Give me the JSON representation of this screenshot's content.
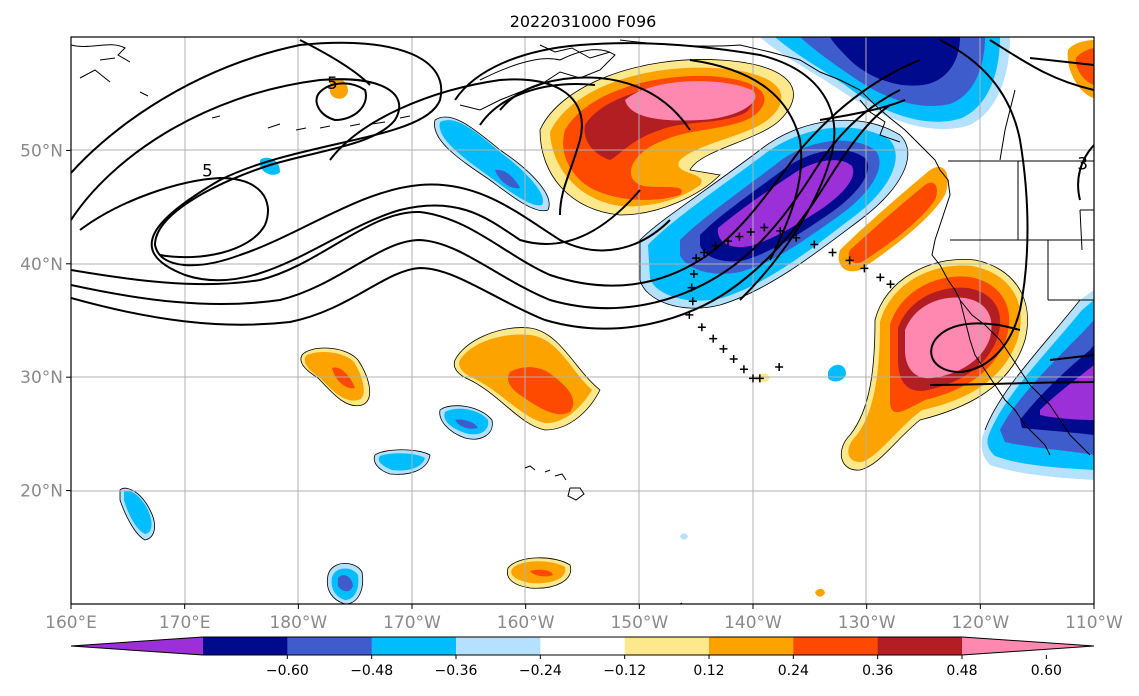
{
  "title": "2022031000 F096",
  "map": {
    "lon_range": [
      160,
      250
    ],
    "lat_range": [
      10,
      60
    ],
    "lon_ticks": [
      {
        "lon": 160,
        "label": "160°E"
      },
      {
        "lon": 170,
        "label": "170°E"
      },
      {
        "lon": 180,
        "label": "180°W"
      },
      {
        "lon": 190,
        "label": "170°W"
      },
      {
        "lon": 200,
        "label": "160°W"
      },
      {
        "lon": 210,
        "label": "150°W"
      },
      {
        "lon": 220,
        "label": "140°W"
      },
      {
        "lon": 230,
        "label": "130°W"
      },
      {
        "lon": 240,
        "label": "120°W"
      },
      {
        "lon": 250,
        "label": "110°W"
      }
    ],
    "lat_ticks": [
      {
        "lat": 20,
        "label": "20°N"
      },
      {
        "lat": 30,
        "label": "30°N"
      },
      {
        "lat": 40,
        "label": "40°N"
      },
      {
        "lat": 50,
        "label": "50°N"
      }
    ],
    "contour_labels": [
      {
        "text": "5",
        "lon": 172.0,
        "lat": 47.7
      },
      {
        "text": "5",
        "lon": 183.0,
        "lat": 55.4
      },
      {
        "text": "3",
        "lon": 249.0,
        "lat": 48.3
      }
    ]
  },
  "colorbar": {
    "colors": [
      "#9b30d9",
      "#000a8c",
      "#3e5ccc",
      "#00bdff",
      "#b3e1ff",
      "#ffffff",
      "#fde98b",
      "#fda300",
      "#fd4a00",
      "#b21e22",
      "#ff88b1"
    ],
    "ticks": [
      "−0.60",
      "−0.48",
      "−0.36",
      "−0.24",
      "−0.12",
      "0.12",
      "0.24",
      "0.36",
      "0.48",
      "0.60"
    ]
  },
  "track_markers": [
    [
      -145.6,
      35.5
    ],
    [
      -144.5,
      34.4
    ],
    [
      -143.5,
      33.4
    ],
    [
      -142.6,
      32.5
    ],
    [
      -141.7,
      31.6
    ],
    [
      -140.8,
      30.7
    ],
    [
      -140.0,
      29.9
    ],
    [
      -137.7,
      30.9
    ],
    [
      -139.4,
      29.9
    ],
    [
      -145.3,
      36.7
    ],
    [
      -145.4,
      37.9
    ],
    [
      -145.2,
      39.1
    ],
    [
      -145.0,
      40.5
    ],
    [
      -144.3,
      41.0
    ],
    [
      -143.3,
      41.6
    ],
    [
      -142.2,
      42.0
    ],
    [
      -141.2,
      42.4
    ],
    [
      -140.2,
      42.8
    ],
    [
      -139.0,
      43.2
    ],
    [
      -137.6,
      42.9
    ],
    [
      -136.2,
      42.3
    ],
    [
      -134.6,
      41.7
    ],
    [
      -133.0,
      41.0
    ],
    [
      -131.5,
      40.3
    ],
    [
      -130.2,
      39.6
    ],
    [
      -128.8,
      38.8
    ],
    [
      -127.9,
      38.2
    ]
  ]
}
